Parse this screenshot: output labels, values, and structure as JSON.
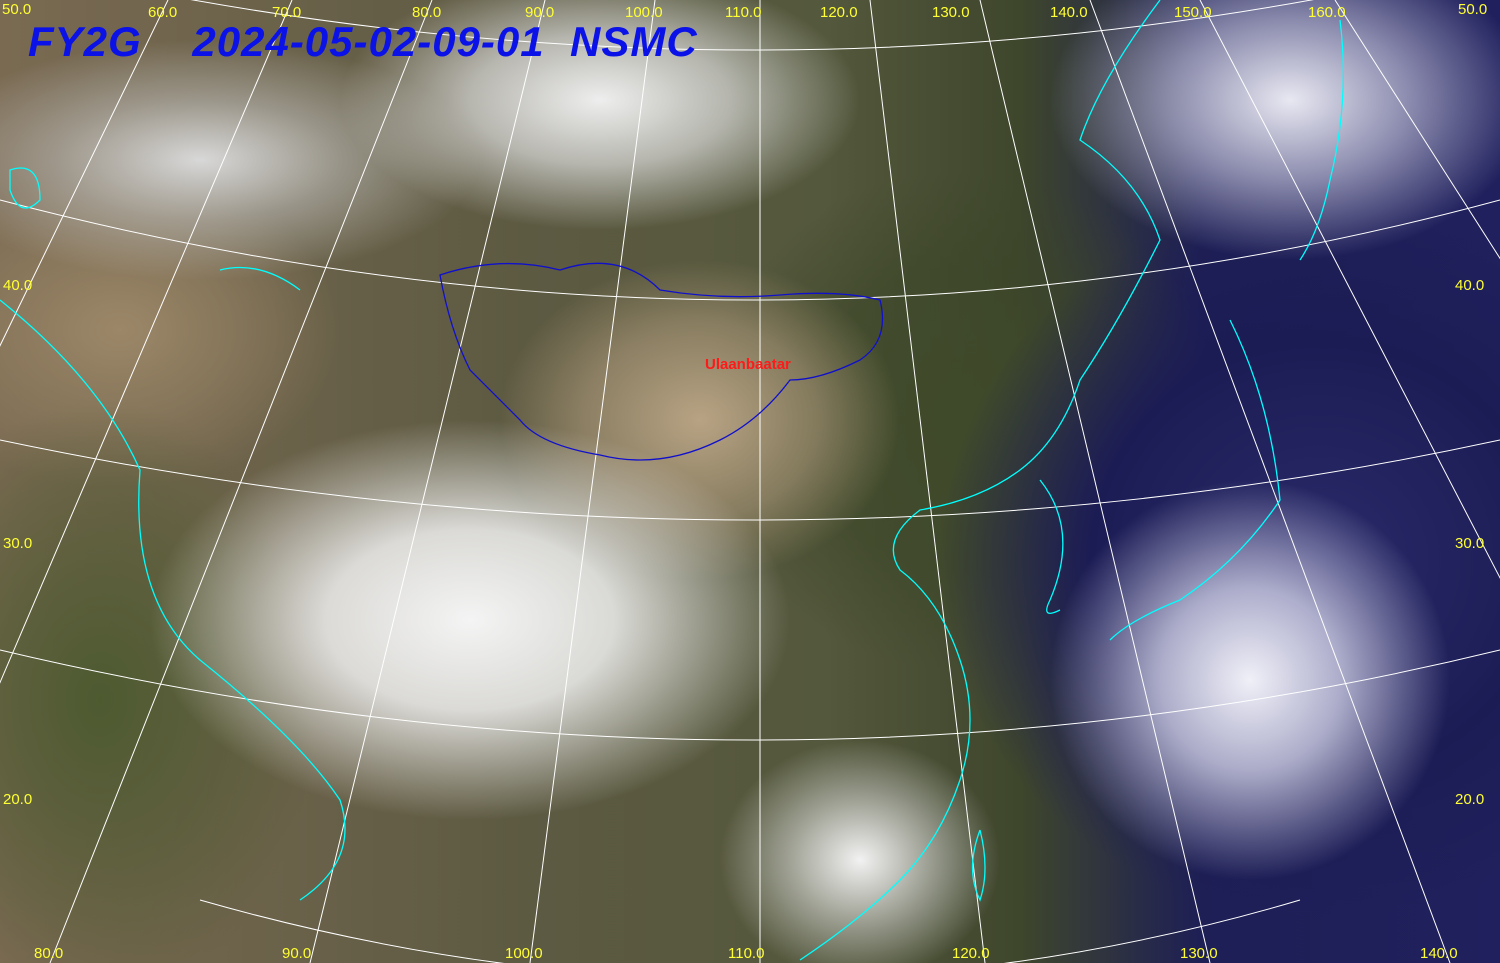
{
  "title": {
    "satellite": "FY2G",
    "datetime": "2024-05-02-09-01",
    "agency": "NSMC"
  },
  "city_label": "Ulaanbaatar",
  "top_labels": [
    "50.0",
    "60.0",
    "70.0",
    "80.0",
    "90.0",
    "100.0",
    "110.0",
    "120.0",
    "130.0",
    "140.0",
    "150.0",
    "160.0",
    "50.0"
  ],
  "left_labels": [
    "40.0",
    "30.0",
    "20.0"
  ],
  "right_labels": [
    "40.0",
    "30.0",
    "20.0"
  ],
  "bottom_labels": [
    "80.0",
    "90.0",
    "100.0",
    "110.0",
    "120.0",
    "130.0",
    "140.0"
  ],
  "colors": {
    "grid": "#ffffff",
    "coastline": "#00ffff",
    "border": "#0000cc",
    "labels": "#ffff00",
    "title": "#0000ff",
    "city": "#ff0000"
  }
}
